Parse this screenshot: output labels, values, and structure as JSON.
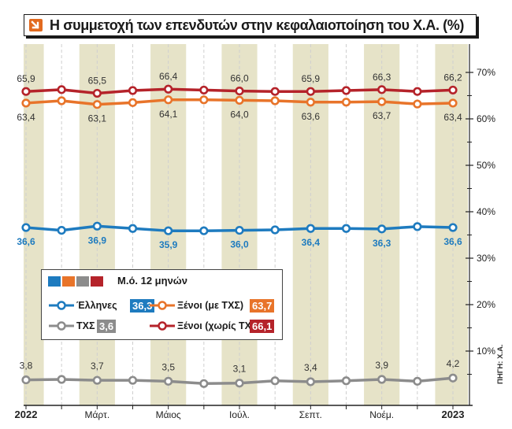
{
  "title": "Η συμμετοχή των επενδυτών στην κεφαλαιοποίηση του Χ.Α. (%)",
  "source": "ΠΗΓΗ: Χ.Α.",
  "legend": {
    "header": "Μ.ό. 12 μηνών",
    "items": [
      {
        "name": "Έλληνες",
        "avg": "36,3"
      },
      {
        "name": "Ξένοι (με ΤΧΣ)",
        "avg": "63,7"
      },
      {
        "name": "ΤΧΣ",
        "avg": "3,6"
      },
      {
        "name": "Ξένοι (χωρίς ΤΧΣ)",
        "avg": "66,1"
      }
    ]
  },
  "colors": {
    "greeks": "#1e7bbf",
    "foreign_with": "#e8742a",
    "hfsf": "#8c8c8c",
    "foreign_without": "#b5232a",
    "band": "#e6e3c8"
  },
  "chart_data": {
    "type": "line",
    "x": [
      "2022",
      "",
      "Μάρτ.",
      "",
      "Μάιος",
      "",
      "Ιούλ.",
      "",
      "Σεπτ.",
      "",
      "Νοέμ.",
      "",
      "2023"
    ],
    "ylim": [
      0,
      75
    ],
    "yticks": [
      "10%",
      "20%",
      "30%",
      "40%",
      "50%",
      "60%",
      "70%"
    ],
    "grid": false,
    "legend_position": "center-left",
    "series": [
      {
        "name": "Ξένοι (χωρίς ΤΧΣ)",
        "color": "#b5232a",
        "values": [
          65.9,
          66.3,
          65.5,
          66.1,
          66.4,
          66.2,
          66.0,
          65.9,
          65.9,
          66.1,
          66.3,
          65.9,
          66.2
        ],
        "labels": [
          "65,9",
          "",
          "65,5",
          "",
          "66,4",
          "",
          "66,0",
          "",
          "65,9",
          "",
          "66,3",
          "",
          "66,2"
        ]
      },
      {
        "name": "Ξένοι (με ΤΧΣ)",
        "color": "#e8742a",
        "values": [
          63.4,
          63.9,
          63.1,
          63.5,
          64.1,
          64.1,
          64.0,
          63.9,
          63.6,
          63.6,
          63.7,
          63.2,
          63.4
        ],
        "labels": [
          "63,4",
          "",
          "63,1",
          "",
          "64,1",
          "",
          "64,0",
          "",
          "63,6",
          "",
          "63,7",
          "",
          "63,4"
        ]
      },
      {
        "name": "Έλληνες",
        "color": "#1e7bbf",
        "values": [
          36.6,
          36.0,
          36.9,
          36.4,
          35.9,
          35.9,
          36.0,
          36.1,
          36.4,
          36.4,
          36.3,
          36.8,
          36.6
        ],
        "labels": [
          "36,6",
          "",
          "36,9",
          "",
          "35,9",
          "",
          "36,0",
          "",
          "36,4",
          "",
          "36,3",
          "",
          "36,6"
        ]
      },
      {
        "name": "ΤΧΣ",
        "color": "#8c8c8c",
        "values": [
          3.8,
          3.9,
          3.7,
          3.7,
          3.5,
          3.0,
          3.1,
          3.6,
          3.4,
          3.6,
          3.9,
          3.5,
          4.2
        ],
        "labels": [
          "3,8",
          "",
          "3,7",
          "",
          "3,5",
          "",
          "3,1",
          "",
          "3,4",
          "",
          "3,9",
          "",
          "4,2"
        ]
      }
    ]
  }
}
